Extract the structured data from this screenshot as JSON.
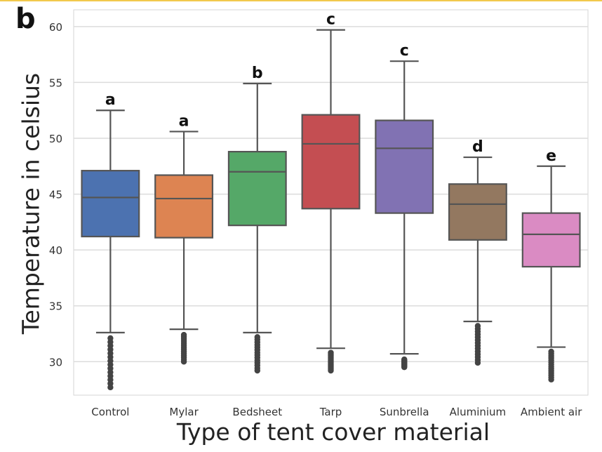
{
  "panel_label": "b",
  "chart_data": {
    "type": "box",
    "title": "",
    "xlabel": "Type of tent cover material",
    "ylabel": "Temperature in celsius",
    "ylim": [
      27,
      61.5
    ],
    "yticks": [
      30,
      35,
      40,
      45,
      50,
      55,
      60
    ],
    "grid": true,
    "categories": [
      "Control",
      "Mylar",
      "Bedsheet",
      "Tarp",
      "Sunbrella",
      "Aluminium",
      "Ambient air"
    ],
    "boxes": [
      {
        "category": "Control",
        "whisker_low": 32.6,
        "q1": 41.2,
        "median": 44.7,
        "q3": 47.1,
        "whisker_high": 52.5,
        "outliers_low": 27.7,
        "outliers_high": 32.1,
        "letter": "a",
        "color": "#4c72b0"
      },
      {
        "category": "Mylar",
        "whisker_low": 32.9,
        "q1": 41.1,
        "median": 44.6,
        "q3": 46.7,
        "whisker_high": 50.6,
        "outliers_low": 30.0,
        "outliers_high": 32.4,
        "letter": "a",
        "color": "#dd8452"
      },
      {
        "category": "Bedsheet",
        "whisker_low": 32.6,
        "q1": 42.2,
        "median": 47.0,
        "q3": 48.8,
        "whisker_high": 54.9,
        "outliers_low": 29.2,
        "outliers_high": 32.2,
        "letter": "b",
        "color": "#55a868"
      },
      {
        "category": "Tarp",
        "whisker_low": 31.2,
        "q1": 43.7,
        "median": 49.5,
        "q3": 52.1,
        "whisker_high": 59.7,
        "outliers_low": 29.2,
        "outliers_high": 30.8,
        "letter": "c",
        "color": "#c44e52"
      },
      {
        "category": "Sunbrella",
        "whisker_low": 30.7,
        "q1": 43.3,
        "median": 49.1,
        "q3": 51.6,
        "whisker_high": 56.9,
        "outliers_low": 29.5,
        "outliers_high": 30.2,
        "letter": "c",
        "color": "#8172b3"
      },
      {
        "category": "Aluminium",
        "whisker_low": 33.6,
        "q1": 40.9,
        "median": 44.1,
        "q3": 45.9,
        "whisker_high": 48.3,
        "outliers_low": 29.9,
        "outliers_high": 33.2,
        "letter": "d",
        "color": "#937860"
      },
      {
        "category": "Ambient air",
        "whisker_low": 31.3,
        "q1": 38.5,
        "median": 41.4,
        "q3": 43.3,
        "whisker_high": 47.5,
        "outliers_low": 28.4,
        "outliers_high": 30.9,
        "letter": "e",
        "color": "#da8bc3"
      }
    ]
  }
}
